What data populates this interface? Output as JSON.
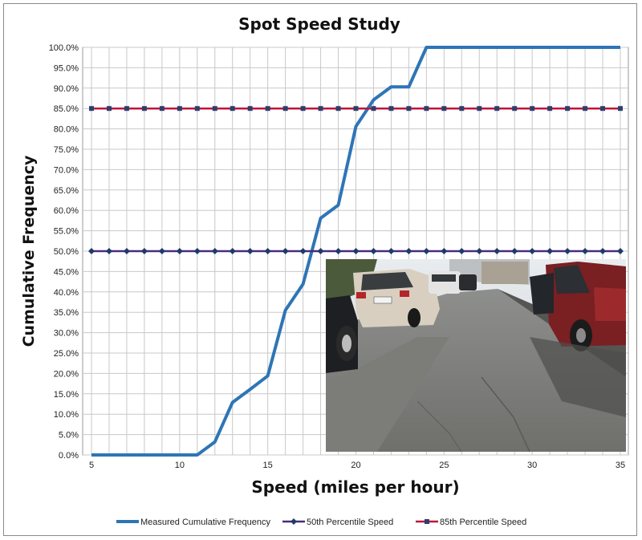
{
  "chart_data": {
    "type": "line",
    "title": "Spot Speed Study",
    "xlabel": "Speed (miles per hour)",
    "ylabel": "Cumulative Frequency",
    "xlim": [
      5,
      35
    ],
    "ylim": [
      0,
      100
    ],
    "x_ticks": [
      5,
      10,
      15,
      20,
      25,
      30,
      35
    ],
    "y_ticks": [
      "0.0%",
      "5.0%",
      "10.0%",
      "15.0%",
      "20.0%",
      "25.0%",
      "30.0%",
      "35.0%",
      "40.0%",
      "45.0%",
      "50.0%",
      "55.0%",
      "60.0%",
      "65.0%",
      "70.0%",
      "75.0%",
      "80.0%",
      "85.0%",
      "90.0%",
      "95.0%",
      "100.0%"
    ],
    "grid": true,
    "legend_position": "bottom",
    "x": [
      5,
      6,
      7,
      8,
      9,
      10,
      11,
      12,
      13,
      14,
      15,
      16,
      17,
      18,
      19,
      20,
      21,
      22,
      23,
      24,
      25,
      26,
      27,
      28,
      29,
      30,
      31,
      32,
      33,
      34,
      35
    ],
    "series": [
      {
        "name": "Measured Cumulative Frequency",
        "color": "#2e75b6",
        "marker": "none",
        "values": [
          0,
          0,
          0,
          0,
          0,
          0,
          0,
          3.2,
          12.9,
          16.1,
          19.4,
          35.5,
          41.9,
          58.1,
          61.3,
          80.6,
          87.1,
          90.3,
          90.3,
          100,
          100,
          100,
          100,
          100,
          100,
          100,
          100,
          100,
          100,
          100,
          100
        ]
      },
      {
        "name": "50th Percentile Speed",
        "color": "#4b2c7a",
        "marker": "diamond",
        "values": [
          50,
          50,
          50,
          50,
          50,
          50,
          50,
          50,
          50,
          50,
          50,
          50,
          50,
          50,
          50,
          50,
          50,
          50,
          50,
          50,
          50,
          50,
          50,
          50,
          50,
          50,
          50,
          50,
          50,
          50,
          50
        ]
      },
      {
        "name": "85th Percentile Speed",
        "color": "#c0143c",
        "marker": "square",
        "values": [
          85,
          85,
          85,
          85,
          85,
          85,
          85,
          85,
          85,
          85,
          85,
          85,
          85,
          85,
          85,
          85,
          85,
          85,
          85,
          85,
          85,
          85,
          85,
          85,
          85,
          85,
          85,
          85,
          85,
          85,
          85
        ]
      }
    ]
  }
}
